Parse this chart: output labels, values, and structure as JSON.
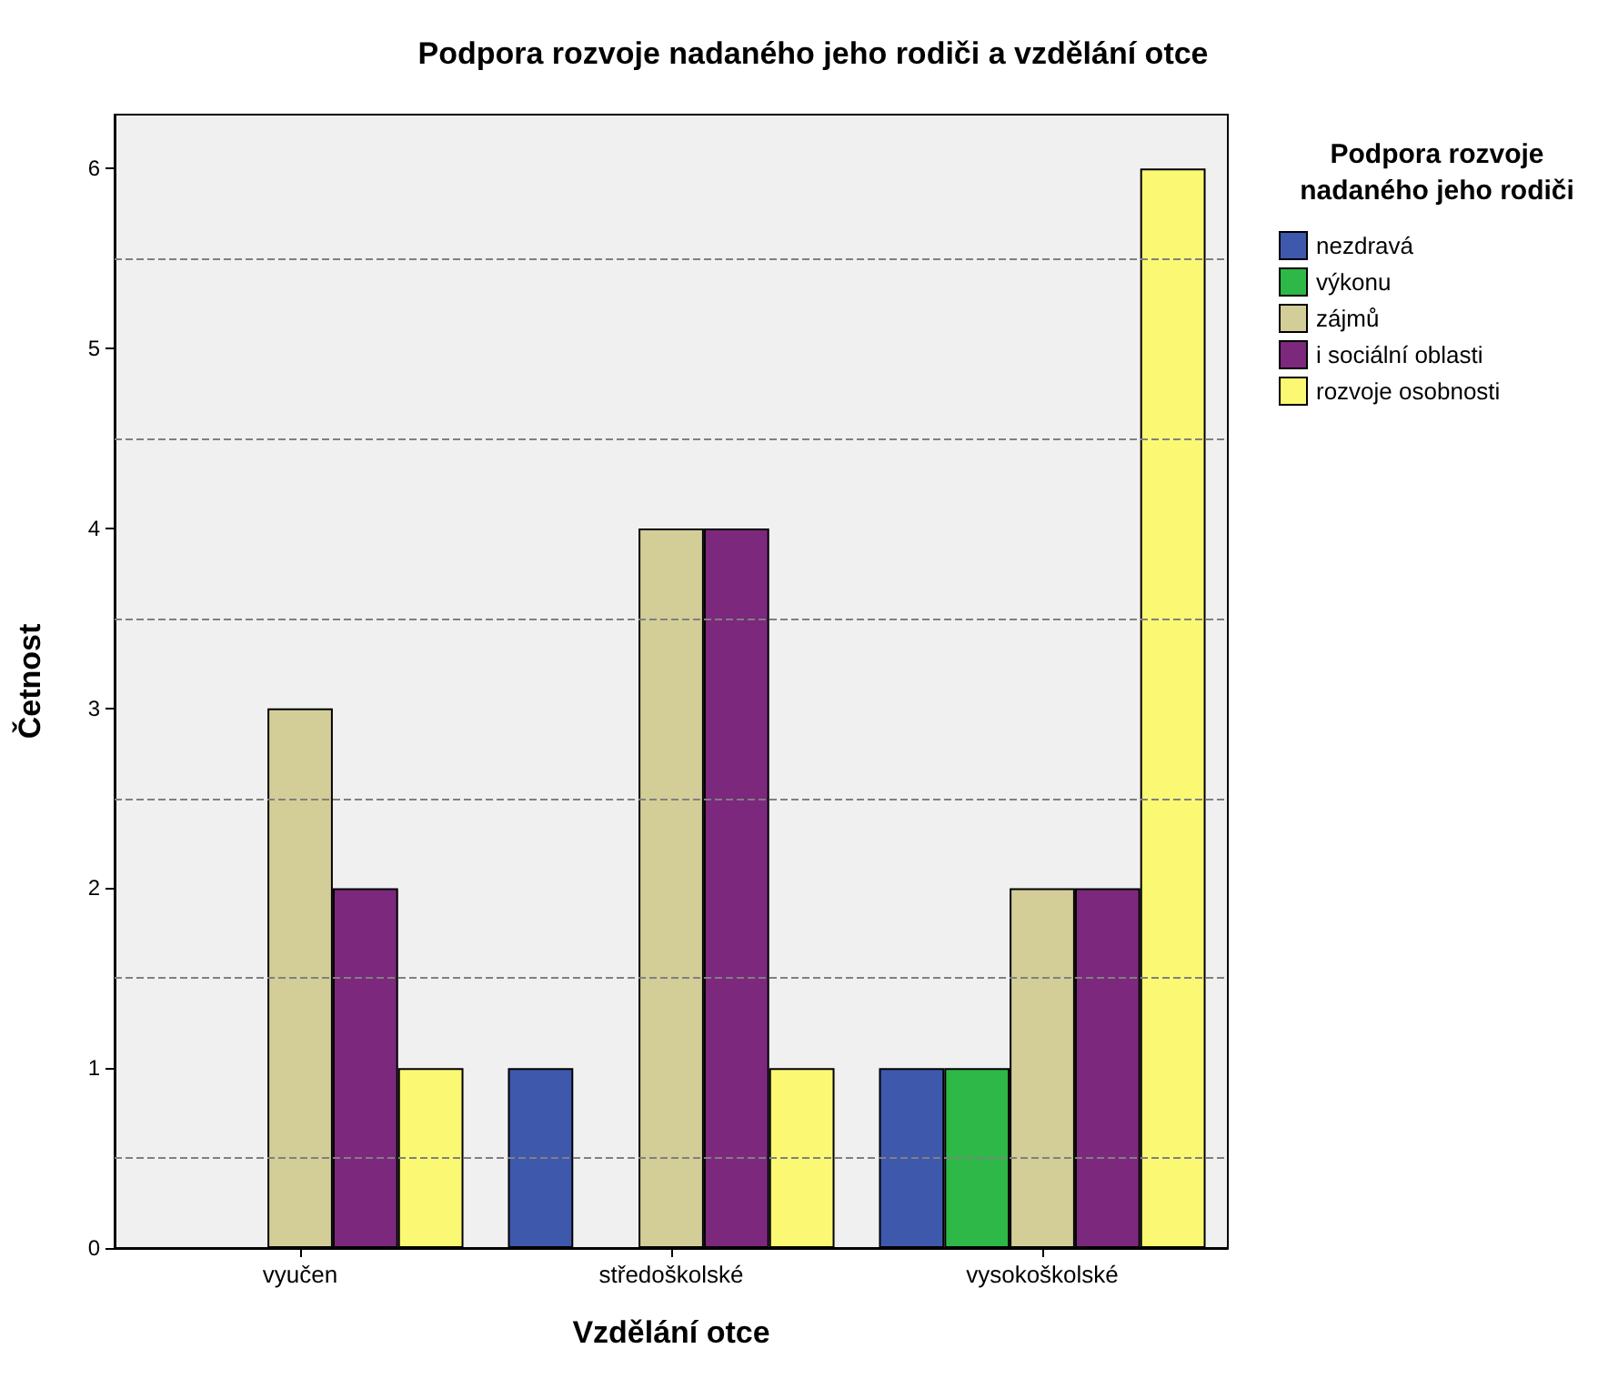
{
  "chart_data": {
    "type": "bar",
    "title": "Podpora rozvoje nadaného jeho rodiči a vzdělání otce",
    "xlabel": "Vzdělání otce",
    "ylabel": "Četnost",
    "legend_title": "Podpora rozvoje\nnadaného jeho rodiči",
    "categories": [
      "vyučen",
      "středoškolské",
      "vysokoškolské"
    ],
    "series": [
      {
        "name": "nezdravá",
        "color": "#3e58ac",
        "values": [
          null,
          1,
          1
        ]
      },
      {
        "name": "výkonu",
        "color": "#2eb848",
        "values": [
          null,
          null,
          1
        ]
      },
      {
        "name": "zájmů",
        "color": "#d3ce97",
        "values": [
          3,
          4,
          2
        ]
      },
      {
        "name": "i sociální oblasti",
        "color": "#7c287d",
        "values": [
          2,
          4,
          2
        ]
      },
      {
        "name": "rozvoje osobnosti",
        "color": "#fbf873",
        "values": [
          1,
          1,
          6
        ]
      }
    ],
    "ylim": [
      0,
      6.3
    ],
    "yticks": [
      0,
      1,
      2,
      3,
      4,
      5,
      6
    ],
    "ref_lines": [
      {
        "axis": "y",
        "value": 0.5,
        "color": "#808080",
        "line_style": "dashed"
      },
      {
        "axis": "y",
        "value": 1.5,
        "color": "#808080",
        "line_style": "dashed"
      },
      {
        "axis": "y",
        "value": 2.5,
        "color": "#808080",
        "line_style": "dashed"
      },
      {
        "axis": "y",
        "value": 3.5,
        "color": "#808080",
        "line_style": "dashed"
      },
      {
        "axis": "y",
        "value": 4.5,
        "color": "#808080",
        "line_style": "dashed"
      },
      {
        "axis": "y",
        "value": 5.5,
        "color": "#808080",
        "line_style": "dashed"
      }
    ],
    "grid": false,
    "legend": "right"
  }
}
